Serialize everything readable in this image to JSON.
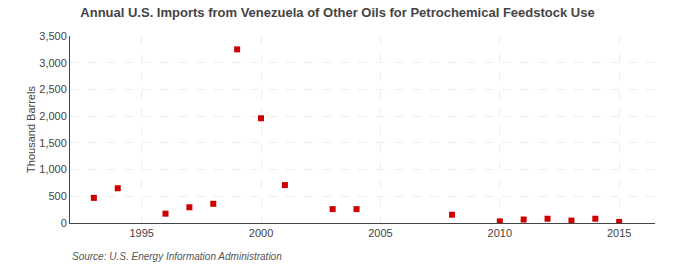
{
  "chart_data": {
    "type": "scatter",
    "title": "Annual U.S. Imports from Venezuela of Other Oils for Petrochemical Feedstock Use",
    "ylabel": "Thousand Barrels",
    "annotations": [
      "Source: U.S. Energy Information Administration"
    ],
    "x": [
      1993,
      1994,
      1996,
      1997,
      1998,
      1999,
      2000,
      2001,
      2003,
      2004,
      2008,
      2010,
      2011,
      2012,
      2013,
      2014,
      2015
    ],
    "values": [
      470,
      650,
      175,
      295,
      360,
      3250,
      1960,
      710,
      260,
      260,
      155,
      30,
      65,
      80,
      45,
      80,
      20
    ],
    "color": "#cc0000",
    "marker": "square",
    "xlim": [
      1992,
      2016.5
    ],
    "xticks": [
      1995,
      2000,
      2005,
      2010,
      2015
    ],
    "ylim": [
      0,
      3500
    ],
    "yticks": [
      0,
      500,
      {
        "value": 1000,
        "label": "1,000"
      },
      {
        "value": 1500,
        "label": "1,500"
      },
      {
        "value": 2000,
        "label": "2,000"
      },
      {
        "value": 2500,
        "label": "2,500"
      },
      {
        "value": 3000,
        "label": "3,000"
      },
      {
        "value": 3500,
        "label": "3,500"
      }
    ],
    "grid": true
  }
}
